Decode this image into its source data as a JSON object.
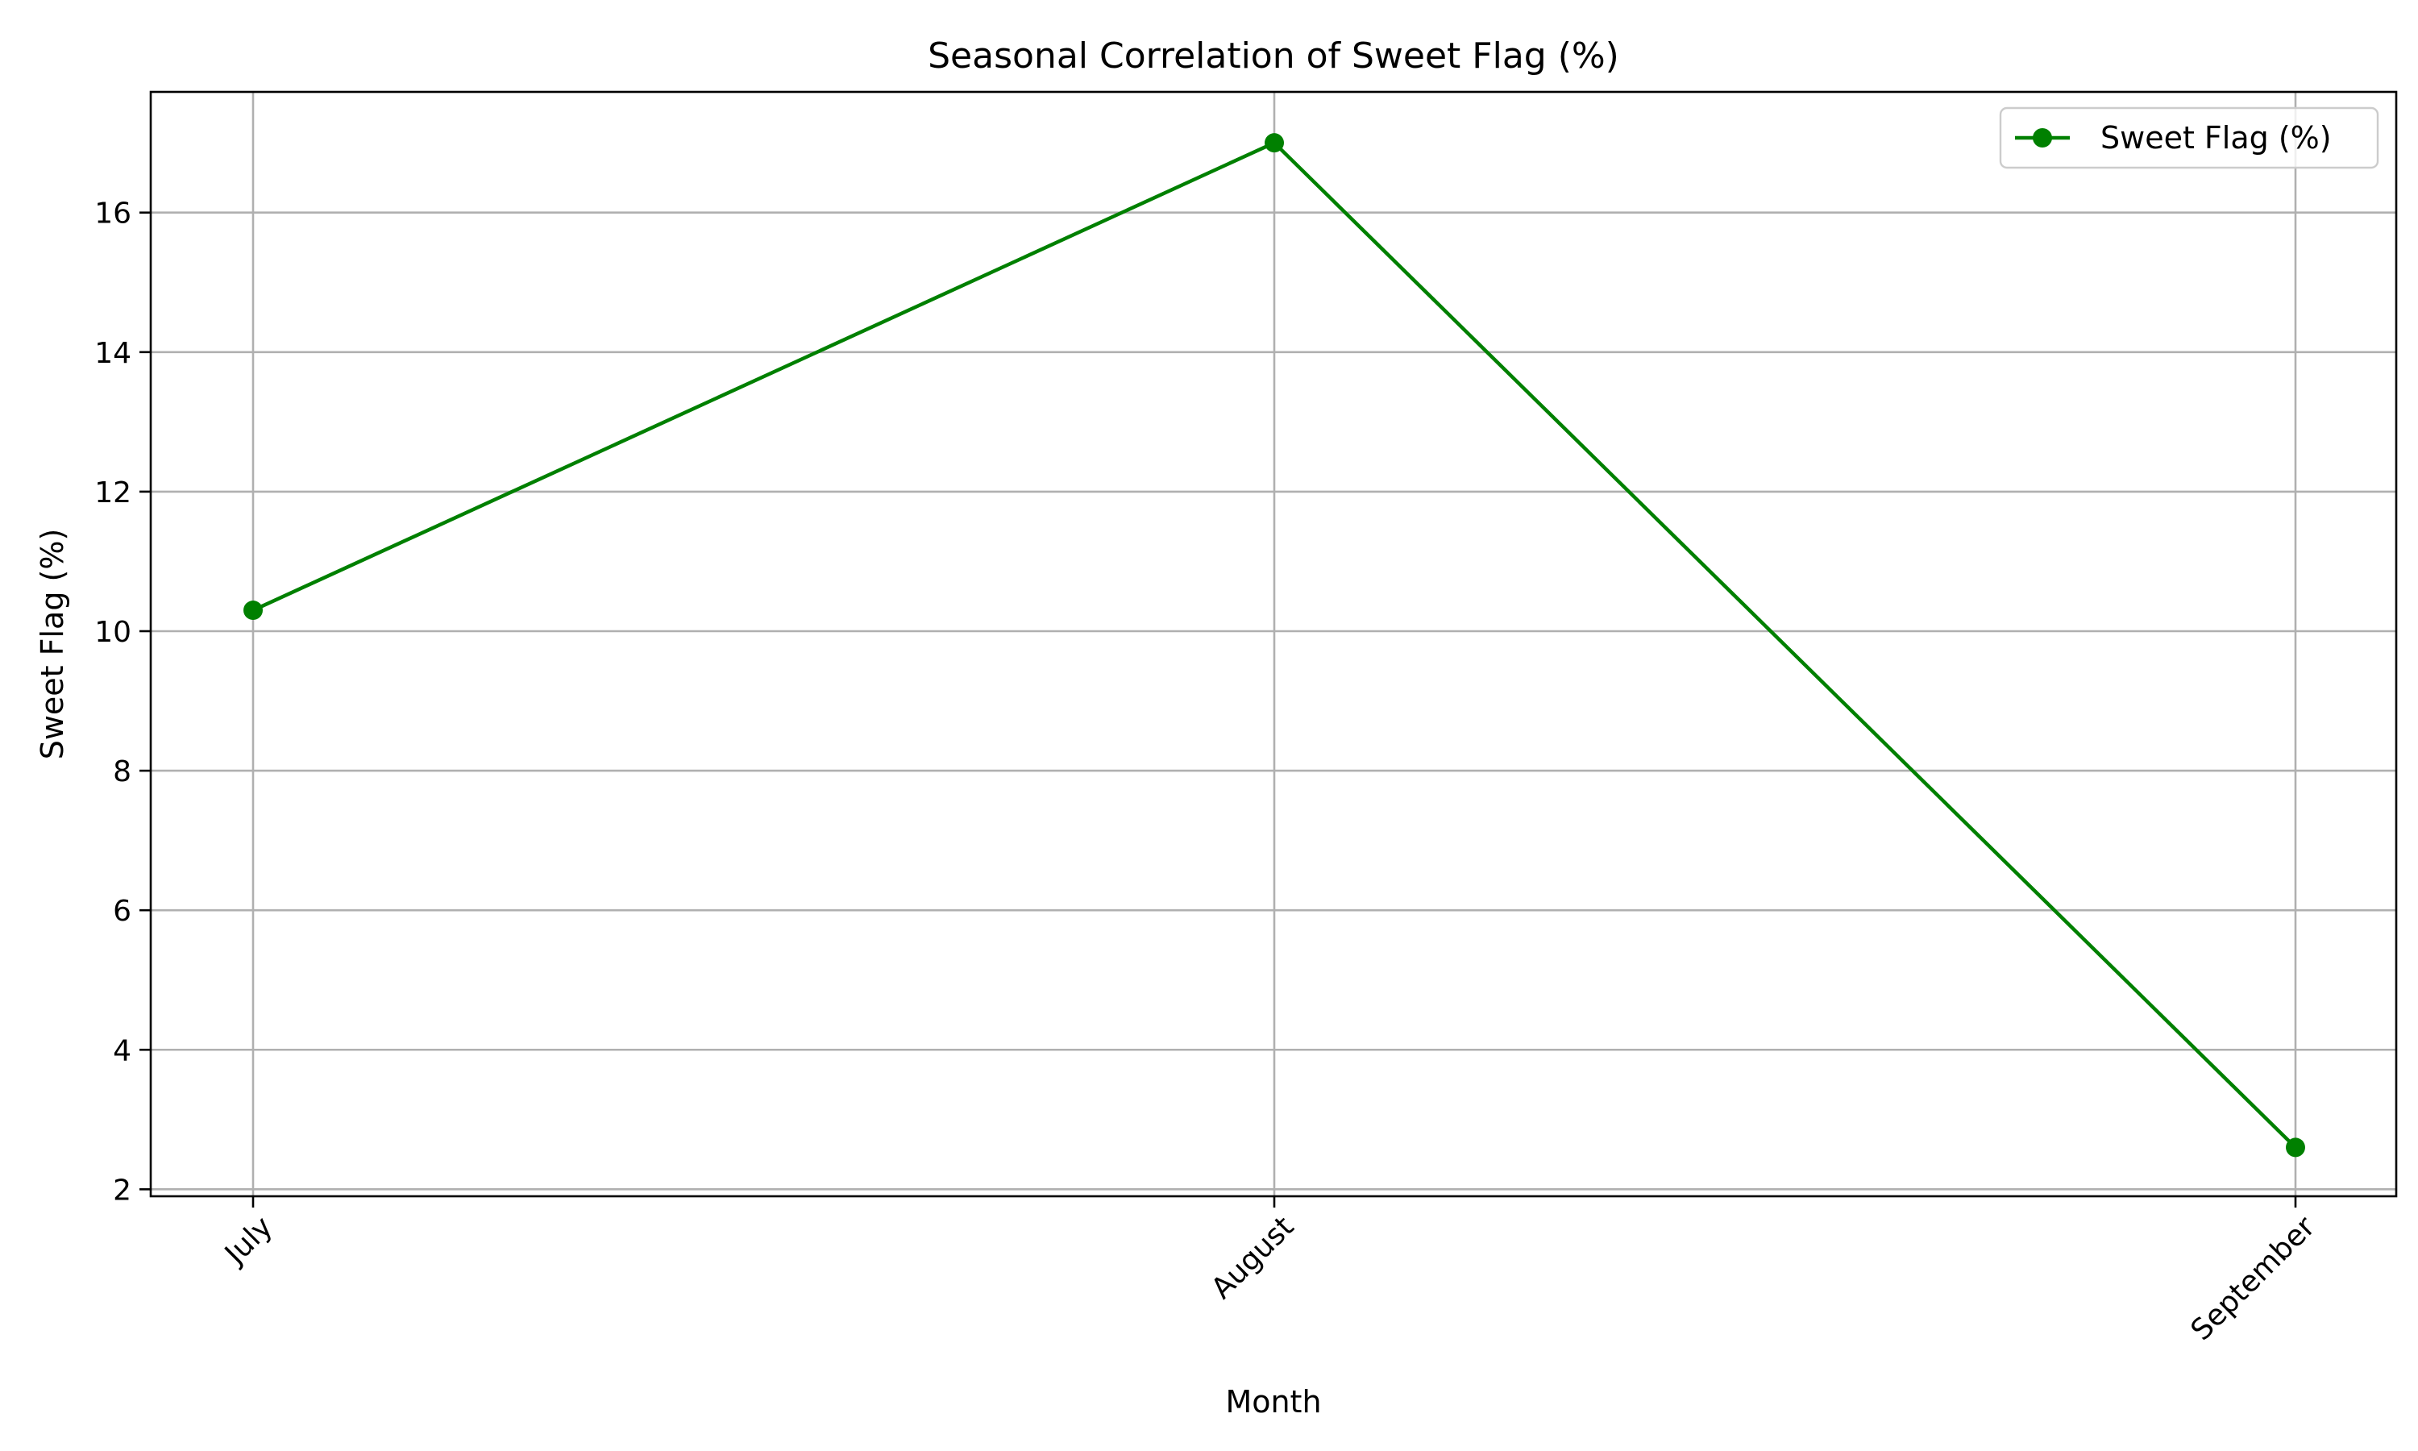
{
  "chart_data": {
    "type": "line",
    "title": "Seasonal Correlation of Sweet Flag (%)",
    "xlabel": "Month",
    "ylabel": "Sweet Flag (%)",
    "categories": [
      "July",
      "August",
      "September"
    ],
    "series": [
      {
        "name": "Sweet Flag (%)",
        "values": [
          10.3,
          17.0,
          2.6
        ],
        "color": "#008000",
        "marker": "circle"
      }
    ],
    "yticks": [
      2,
      4,
      6,
      8,
      10,
      12,
      14,
      16
    ],
    "ylim": [
      1.9,
      17.73
    ],
    "grid": true,
    "legend_position": "top-right",
    "xtick_rotation": -45
  }
}
